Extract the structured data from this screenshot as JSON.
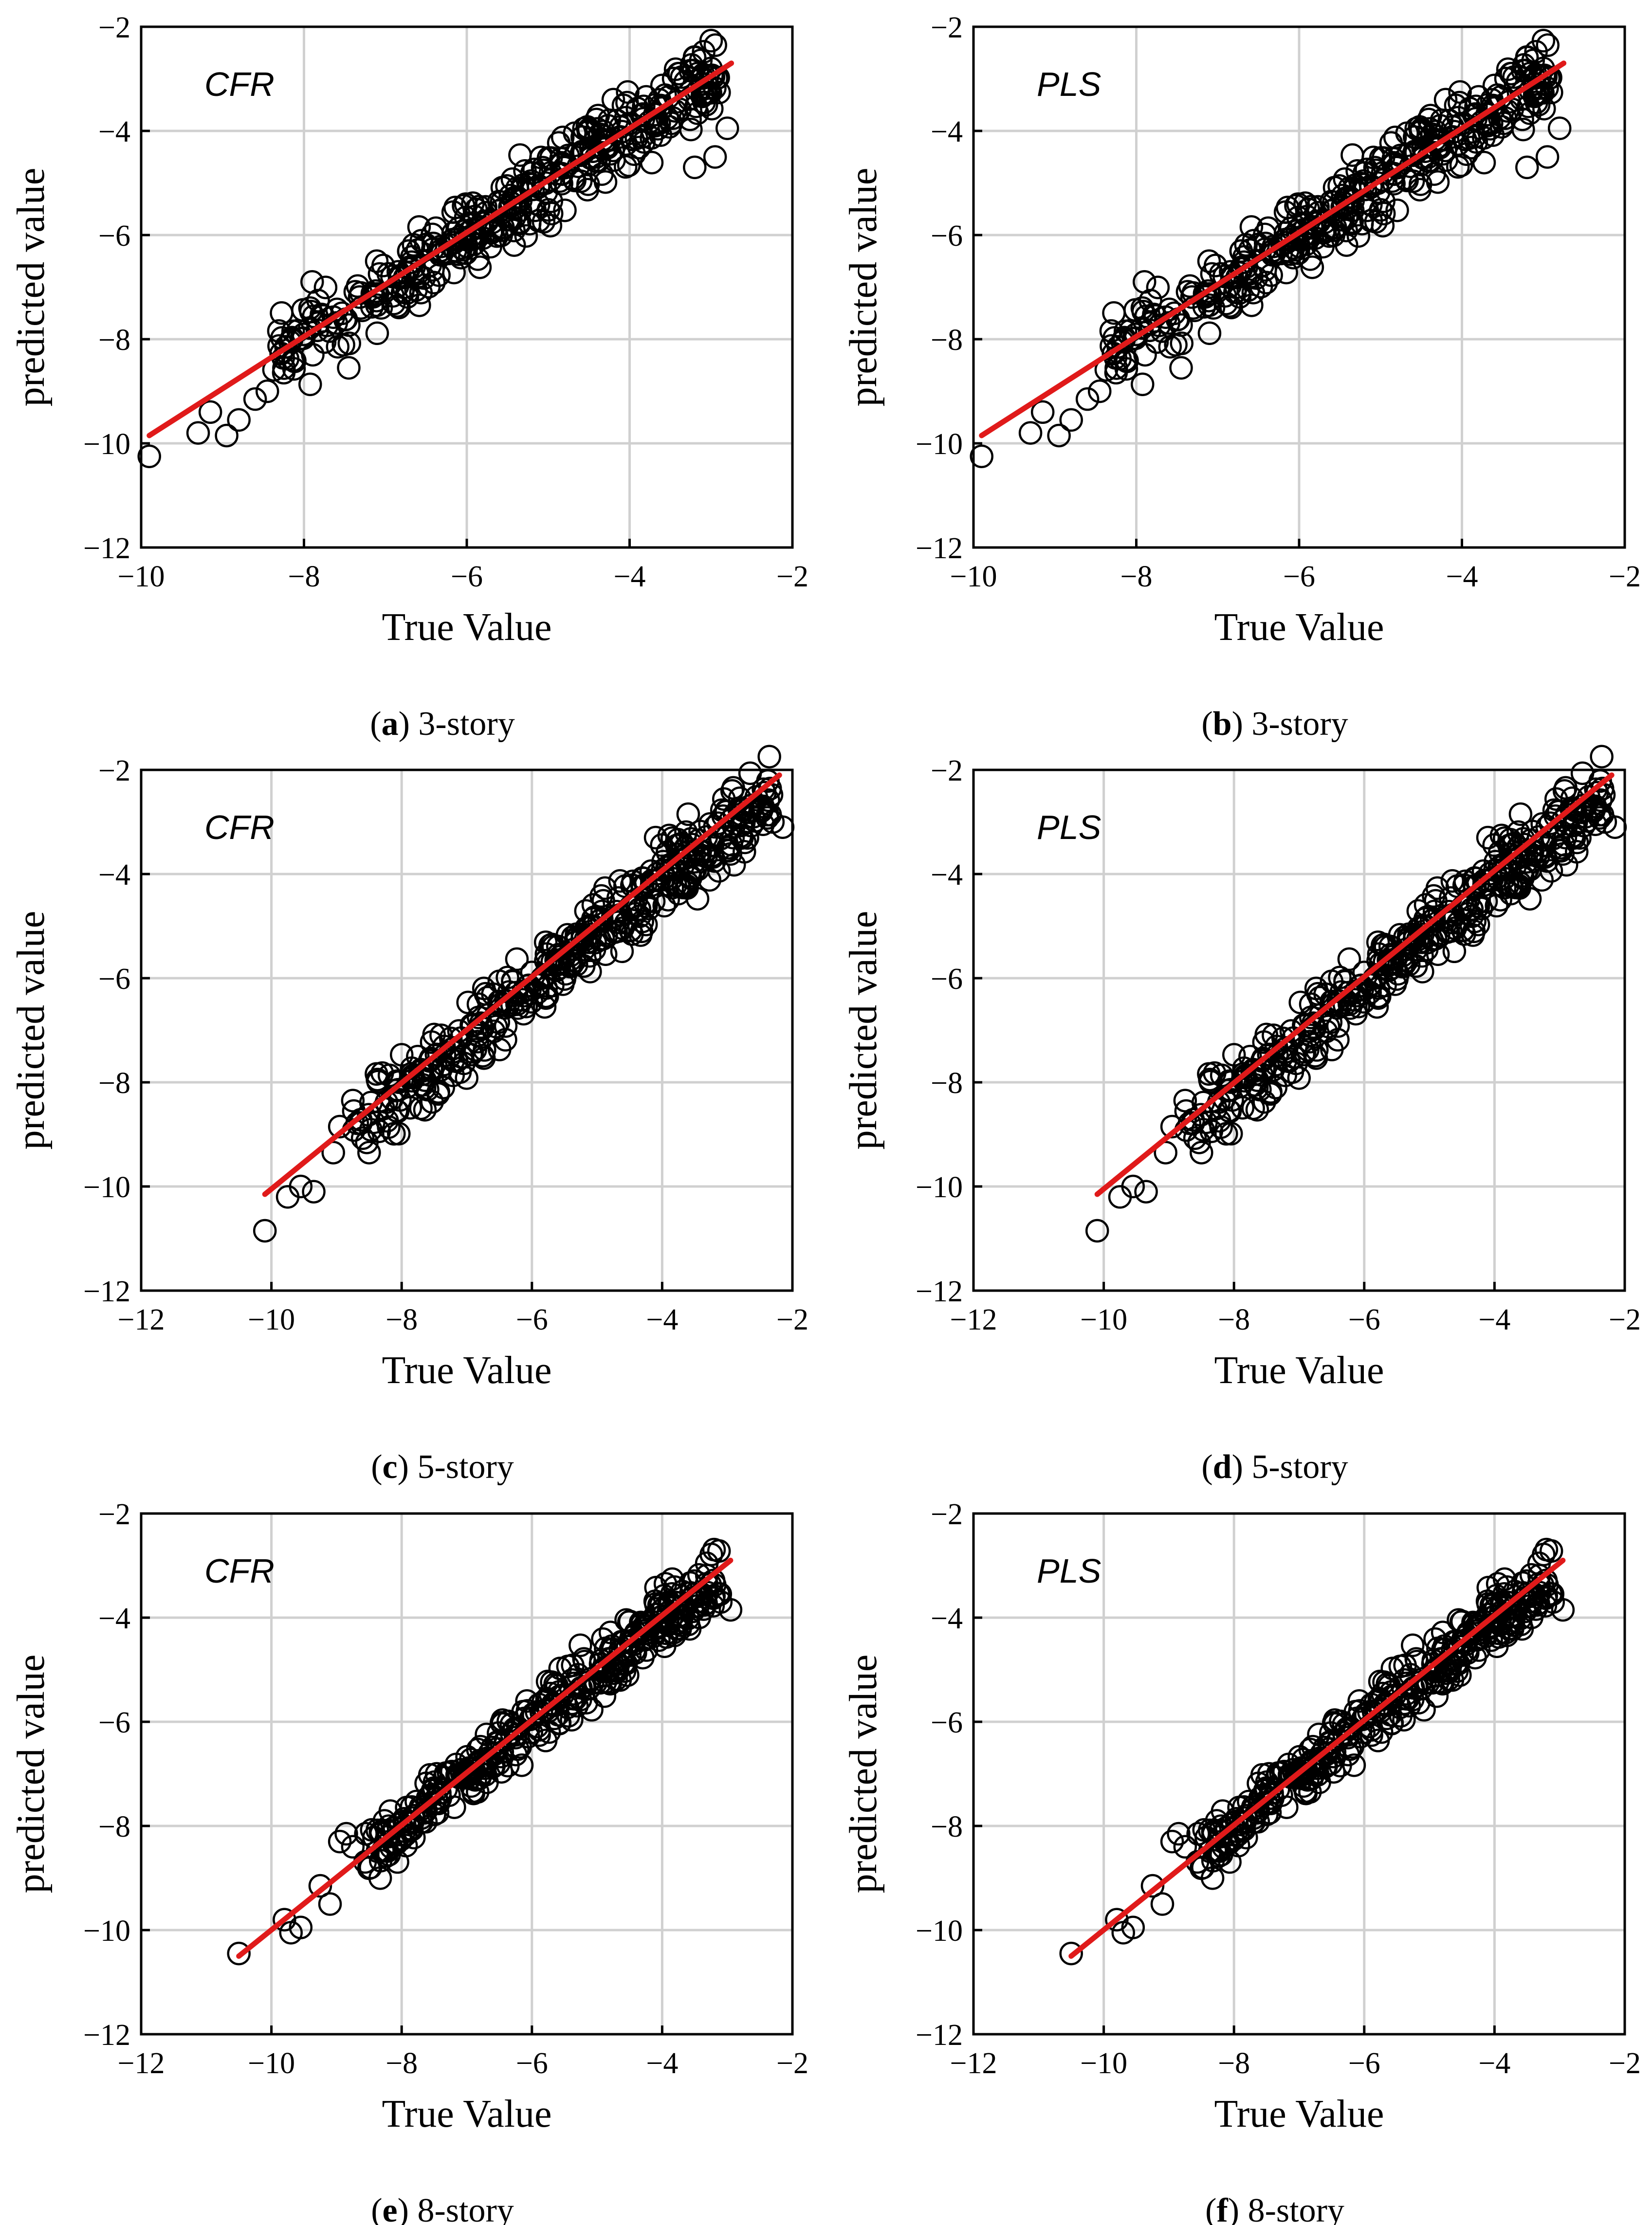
{
  "chart_data": [
    {
      "id": "a",
      "type": "scatter",
      "caption_letter": "a",
      "caption_text": " 3-story",
      "model_label": "CFR",
      "xlabel": "True Value",
      "ylabel": "predicted value",
      "xlim": [
        -10,
        -2
      ],
      "ylim": [
        -12,
        -2
      ],
      "xticks": [
        -10,
        -8,
        -6,
        -4,
        -2
      ],
      "yticks": [
        -12,
        -10,
        -8,
        -6,
        -4,
        -2
      ],
      "grid": true,
      "scatter_band": {
        "x_min": -8.5,
        "x_max": -2.9,
        "slope": 1.0,
        "intercept": 0.0,
        "spread": 0.35,
        "n_points": 380,
        "seed": 11
      },
      "points": [
        {
          "x": -9.9,
          "y": -10.25
        },
        {
          "x": -9.3,
          "y": -9.8
        },
        {
          "x": -9.15,
          "y": -9.4
        },
        {
          "x": -8.95,
          "y": -9.85
        },
        {
          "x": -8.8,
          "y": -9.55
        },
        {
          "x": -8.6,
          "y": -9.15
        },
        {
          "x": -8.45,
          "y": -9.0
        },
        {
          "x": -7.45,
          "y": -8.55
        },
        {
          "x": -3.2,
          "y": -4.7
        },
        {
          "x": -2.95,
          "y": -4.5
        },
        {
          "x": -2.8,
          "y": -3.95
        },
        {
          "x": -3.0,
          "y": -2.8
        },
        {
          "x": -3.4,
          "y": -2.9
        },
        {
          "x": -4.2,
          "y": -3.4
        }
      ],
      "fit_line": {
        "x": [
          -9.9,
          -2.75
        ],
        "y": [
          -9.85,
          -2.7
        ]
      }
    },
    {
      "id": "b",
      "type": "scatter",
      "caption_letter": "b",
      "caption_text": " 3-story",
      "model_label": "PLS",
      "xlabel": "True Value",
      "ylabel": "predicted value",
      "xlim": [
        -10,
        -2
      ],
      "ylim": [
        -12,
        -2
      ],
      "xticks": [
        -10,
        -8,
        -6,
        -4,
        -2
      ],
      "yticks": [
        -12,
        -10,
        -8,
        -6,
        -4,
        -2
      ],
      "grid": true,
      "scatter_band": {
        "x_min": -8.5,
        "x_max": -2.9,
        "slope": 1.0,
        "intercept": 0.0,
        "spread": 0.35,
        "n_points": 380,
        "seed": 11
      },
      "points": [
        {
          "x": -9.9,
          "y": -10.25
        },
        {
          "x": -9.3,
          "y": -9.8
        },
        {
          "x": -9.15,
          "y": -9.4
        },
        {
          "x": -8.95,
          "y": -9.85
        },
        {
          "x": -8.8,
          "y": -9.55
        },
        {
          "x": -8.6,
          "y": -9.15
        },
        {
          "x": -8.45,
          "y": -9.0
        },
        {
          "x": -7.45,
          "y": -8.55
        },
        {
          "x": -3.2,
          "y": -4.7
        },
        {
          "x": -2.95,
          "y": -4.5
        },
        {
          "x": -2.8,
          "y": -3.95
        },
        {
          "x": -3.0,
          "y": -2.8
        },
        {
          "x": -3.4,
          "y": -2.9
        },
        {
          "x": -4.2,
          "y": -3.4
        }
      ],
      "fit_line": {
        "x": [
          -9.9,
          -2.75
        ],
        "y": [
          -9.85,
          -2.7
        ]
      }
    },
    {
      "id": "c",
      "type": "scatter",
      "caption_letter": "c",
      "caption_text": " 5-story",
      "model_label": "CFR",
      "xlabel": "True Value",
      "ylabel": "predicted value",
      "xlim": [
        -12,
        -2
      ],
      "ylim": [
        -12,
        -2
      ],
      "xticks": [
        -12,
        -10,
        -8,
        -6,
        -4,
        -2
      ],
      "yticks": [
        -12,
        -10,
        -8,
        -6,
        -4,
        -2
      ],
      "grid": true,
      "scatter_band": {
        "x_min": -8.8,
        "x_max": -2.3,
        "slope": 1.0,
        "intercept": -0.15,
        "spread": 0.35,
        "n_points": 380,
        "seed": 23
      },
      "points": [
        {
          "x": -10.1,
          "y": -10.85
        },
        {
          "x": -9.75,
          "y": -10.2
        },
        {
          "x": -9.55,
          "y": -10.0
        },
        {
          "x": -9.35,
          "y": -10.1
        },
        {
          "x": -9.05,
          "y": -9.35
        },
        {
          "x": -8.95,
          "y": -8.85
        },
        {
          "x": -8.75,
          "y": -8.35
        },
        {
          "x": -8.5,
          "y": -9.35
        },
        {
          "x": -2.3,
          "y": -3.0
        },
        {
          "x": -2.15,
          "y": -3.1
        },
        {
          "x": -2.6,
          "y": -2.9
        },
        {
          "x": -3.6,
          "y": -2.85
        },
        {
          "x": -4.1,
          "y": -3.3
        }
      ],
      "fit_line": {
        "x": [
          -10.1,
          -2.2
        ],
        "y": [
          -10.15,
          -2.1
        ]
      }
    },
    {
      "id": "d",
      "type": "scatter",
      "caption_letter": "d",
      "caption_text": " 5-story",
      "model_label": "PLS",
      "xlabel": "True Value",
      "ylabel": "predicted value",
      "xlim": [
        -12,
        -2
      ],
      "ylim": [
        -12,
        -2
      ],
      "xticks": [
        -12,
        -10,
        -8,
        -6,
        -4,
        -2
      ],
      "yticks": [
        -12,
        -10,
        -8,
        -6,
        -4,
        -2
      ],
      "grid": true,
      "scatter_band": {
        "x_min": -8.8,
        "x_max": -2.3,
        "slope": 1.0,
        "intercept": -0.15,
        "spread": 0.35,
        "n_points": 380,
        "seed": 23
      },
      "points": [
        {
          "x": -10.1,
          "y": -10.85
        },
        {
          "x": -9.75,
          "y": -10.2
        },
        {
          "x": -9.55,
          "y": -10.0
        },
        {
          "x": -9.35,
          "y": -10.1
        },
        {
          "x": -9.05,
          "y": -9.35
        },
        {
          "x": -8.95,
          "y": -8.85
        },
        {
          "x": -8.75,
          "y": -8.35
        },
        {
          "x": -8.5,
          "y": -9.35
        },
        {
          "x": -2.3,
          "y": -3.0
        },
        {
          "x": -2.15,
          "y": -3.1
        },
        {
          "x": -2.6,
          "y": -2.9
        },
        {
          "x": -3.6,
          "y": -2.85
        },
        {
          "x": -4.1,
          "y": -3.3
        }
      ],
      "fit_line": {
        "x": [
          -10.1,
          -2.2
        ],
        "y": [
          -10.15,
          -2.1
        ]
      }
    },
    {
      "id": "e",
      "type": "scatter",
      "caption_letter": "e",
      "caption_text": " 8-story",
      "model_label": "CFR",
      "xlabel": "True Value",
      "ylabel": "predicted value",
      "xlim": [
        -12,
        -2
      ],
      "ylim": [
        -12,
        -2
      ],
      "xticks": [
        -12,
        -10,
        -8,
        -6,
        -4,
        -2
      ],
      "yticks": [
        -12,
        -10,
        -8,
        -6,
        -4,
        -2
      ],
      "grid": true,
      "scatter_band": {
        "x_min": -8.6,
        "x_max": -3.1,
        "slope": 1.0,
        "intercept": -0.05,
        "spread": 0.28,
        "n_points": 360,
        "seed": 37
      },
      "points": [
        {
          "x": -10.5,
          "y": -10.45
        },
        {
          "x": -9.8,
          "y": -9.8
        },
        {
          "x": -9.7,
          "y": -10.05
        },
        {
          "x": -9.55,
          "y": -9.95
        },
        {
          "x": -9.25,
          "y": -9.15
        },
        {
          "x": -9.1,
          "y": -9.5
        },
        {
          "x": -8.95,
          "y": -8.3
        },
        {
          "x": -8.85,
          "y": -8.15
        },
        {
          "x": -8.75,
          "y": -8.4
        },
        {
          "x": -8.55,
          "y": -8.15
        },
        {
          "x": -2.95,
          "y": -3.85
        },
        {
          "x": -3.1,
          "y": -3.7
        },
        {
          "x": -3.95,
          "y": -3.35
        }
      ],
      "fit_line": {
        "x": [
          -10.5,
          -2.95
        ],
        "y": [
          -10.5,
          -2.9
        ]
      }
    },
    {
      "id": "f",
      "type": "scatter",
      "caption_letter": "f",
      "caption_text": " 8-story",
      "model_label": "PLS",
      "xlabel": "True Value",
      "ylabel": "predicted value",
      "xlim": [
        -12,
        -2
      ],
      "ylim": [
        -12,
        -2
      ],
      "xticks": [
        -12,
        -10,
        -8,
        -6,
        -4,
        -2
      ],
      "yticks": [
        -12,
        -10,
        -8,
        -6,
        -4,
        -2
      ],
      "grid": true,
      "scatter_band": {
        "x_min": -8.6,
        "x_max": -3.1,
        "slope": 1.0,
        "intercept": -0.05,
        "spread": 0.28,
        "n_points": 360,
        "seed": 37
      },
      "points": [
        {
          "x": -10.5,
          "y": -10.45
        },
        {
          "x": -9.8,
          "y": -9.8
        },
        {
          "x": -9.7,
          "y": -10.05
        },
        {
          "x": -9.55,
          "y": -9.95
        },
        {
          "x": -9.25,
          "y": -9.15
        },
        {
          "x": -9.1,
          "y": -9.5
        },
        {
          "x": -8.95,
          "y": -8.3
        },
        {
          "x": -8.85,
          "y": -8.15
        },
        {
          "x": -8.75,
          "y": -8.4
        },
        {
          "x": -8.55,
          "y": -8.15
        },
        {
          "x": -2.95,
          "y": -3.85
        },
        {
          "x": -3.1,
          "y": -3.7
        },
        {
          "x": -3.95,
          "y": -3.35
        }
      ],
      "fit_line": {
        "x": [
          -10.5,
          -2.95
        ],
        "y": [
          -10.5,
          -2.9
        ]
      }
    }
  ],
  "colors": {
    "marker_edge": "#000000",
    "fit_line": "#e01a1a",
    "grid": "#d0d0d0",
    "axis": "#000000",
    "background": "#ffffff"
  }
}
